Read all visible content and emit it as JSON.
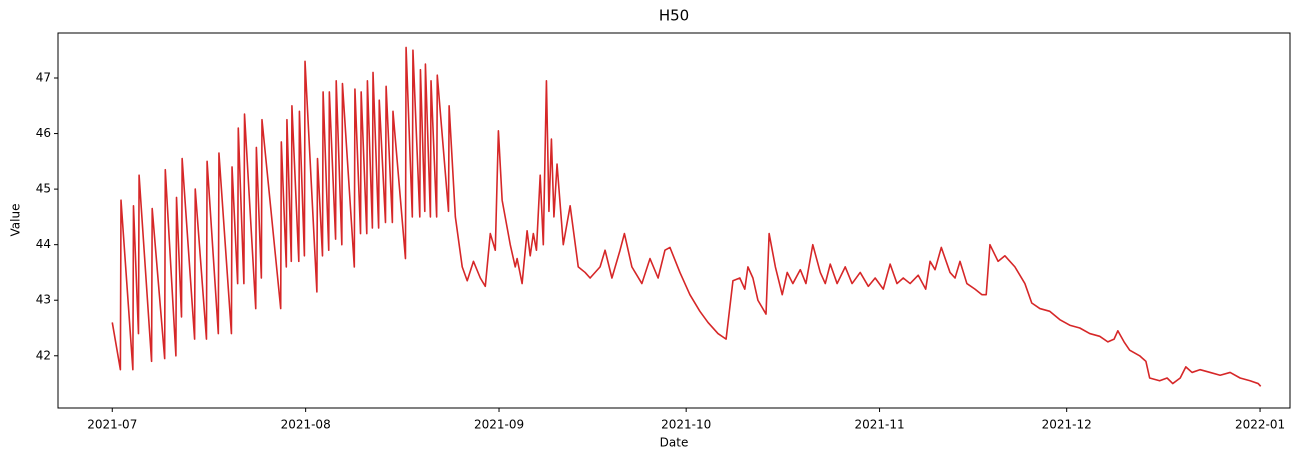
{
  "chart_data": {
    "type": "line",
    "title": "H50",
    "xlabel": "Date",
    "ylabel": "Value",
    "color": "#d62728",
    "xlim": [
      -8.7,
      188.8
    ],
    "ylim": [
      41.06,
      47.81
    ],
    "xticks": [
      {
        "value": 0,
        "label": "2021-07"
      },
      {
        "value": 31,
        "label": "2021-08"
      },
      {
        "value": 62,
        "label": "2021-09"
      },
      {
        "value": 92,
        "label": "2021-10"
      },
      {
        "value": 123,
        "label": "2021-11"
      },
      {
        "value": 153,
        "label": "2021-12"
      },
      {
        "value": 184,
        "label": "2022-01"
      }
    ],
    "yticks": [
      42,
      43,
      44,
      45,
      46,
      47
    ],
    "grid": false,
    "x": [
      0,
      1.3,
      1.4,
      3.3,
      3.4,
      4.2,
      4.3,
      6.3,
      6.4,
      8.4,
      8.5,
      10.2,
      10.3,
      11.1,
      11.2,
      13.2,
      13.3,
      15.1,
      15.2,
      17.0,
      17.1,
      19.1,
      19.2,
      20.1,
      20.2,
      21.1,
      21.2,
      23.0,
      23.1,
      23.9,
      24.0,
      27.0,
      27.1,
      27.9,
      28.0,
      28.7,
      28.8,
      29.9,
      30.0,
      30.8,
      30.9,
      32.8,
      32.9,
      33.7,
      33.8,
      34.7,
      34.8,
      35.8,
      35.9,
      36.8,
      36.9,
      38.8,
      38.9,
      39.8,
      39.9,
      40.8,
      40.9,
      41.7,
      41.8,
      42.7,
      42.8,
      43.8,
      43.9,
      44.9,
      45.0,
      47.0,
      47.1,
      48.1,
      48.2,
      49.3,
      49.4,
      50.1,
      50.2,
      51.0,
      51.1,
      52.0,
      52.1,
      53.9,
      54.0,
      55.0,
      56.1,
      56.9,
      57.9,
      59.0,
      59.8,
      60.6,
      61.4,
      61.9,
      62.5,
      63.8,
      64.6,
      64.9,
      65.7,
      66.5,
      67.0,
      67.5,
      68.0,
      68.6,
      69.1,
      69.6,
      70.0,
      70.4,
      70.8,
      71.3,
      72.3,
      73.4,
      74.7,
      75.8,
      76.6,
      78.2,
      79.0,
      80.1,
      81.4,
      82.1,
      83.3,
      84.9,
      86.2,
      87.5,
      88.6,
      89.4,
      91.0,
      92.6,
      94.2,
      95.5,
      97.1,
      98.4,
      99.5,
      100.6,
      101.4,
      101.9,
      102.7,
      103.5,
      104.8,
      105.3,
      106.3,
      107.4,
      108.2,
      109.1,
      110.3,
      111.2,
      112.3,
      113.5,
      114.3,
      115.1,
      116.2,
      117.5,
      118.6,
      119.9,
      121.2,
      122.3,
      123.6,
      124.7,
      125.8,
      126.8,
      127.9,
      129.2,
      130.4,
      131.1,
      131.9,
      132.9,
      134.3,
      135.1,
      135.9,
      137.0,
      138.3,
      139.4,
      140.1,
      140.7,
      142.0,
      143.1,
      144.7,
      146.3,
      147.4,
      148.7,
      150.3,
      151.9,
      153.5,
      155.1,
      156.7,
      158.3,
      159.6,
      160.6,
      161.2,
      162.2,
      163.1,
      164.7,
      165.7,
      166.3,
      167.9,
      169.1,
      170.0,
      171.2,
      172.1,
      173.1,
      174.4,
      176.0,
      177.6,
      179.2,
      180.8,
      182.4,
      183.7,
      184.1
    ],
    "values": [
      42.6,
      41.75,
      44.8,
      41.75,
      44.7,
      42.4,
      45.25,
      41.9,
      44.65,
      41.95,
      45.35,
      42.0,
      44.85,
      42.7,
      45.55,
      42.3,
      45.0,
      42.3,
      45.5,
      42.4,
      45.65,
      42.4,
      45.4,
      43.3,
      46.1,
      43.3,
      46.35,
      42.85,
      45.75,
      43.4,
      46.25,
      42.85,
      45.85,
      43.6,
      46.25,
      43.7,
      46.5,
      43.7,
      46.4,
      43.8,
      47.3,
      43.15,
      45.55,
      43.8,
      46.75,
      43.9,
      46.75,
      44.1,
      46.95,
      44.0,
      46.9,
      43.6,
      46.8,
      44.2,
      46.75,
      44.2,
      46.95,
      44.3,
      47.1,
      44.3,
      46.6,
      44.4,
      46.85,
      44.4,
      46.4,
      43.75,
      47.55,
      44.5,
      47.5,
      44.5,
      47.15,
      44.6,
      47.25,
      44.5,
      46.95,
      44.5,
      47.05,
      44.6,
      46.5,
      44.5,
      43.6,
      43.35,
      43.7,
      43.4,
      43.25,
      44.2,
      43.9,
      46.05,
      44.8,
      44.0,
      43.6,
      43.75,
      43.3,
      44.25,
      43.8,
      44.2,
      43.9,
      45.25,
      44.0,
      46.95,
      44.6,
      45.9,
      44.5,
      45.45,
      44.0,
      44.7,
      43.6,
      43.5,
      43.4,
      43.6,
      43.9,
      43.4,
      43.9,
      44.2,
      43.6,
      43.3,
      43.75,
      43.4,
      43.9,
      43.95,
      43.5,
      43.1,
      42.8,
      42.6,
      42.4,
      42.3,
      43.35,
      43.4,
      43.2,
      43.6,
      43.4,
      43.0,
      42.75,
      44.2,
      43.6,
      43.1,
      43.5,
      43.3,
      43.55,
      43.3,
      44.0,
      43.5,
      43.3,
      43.65,
      43.3,
      43.6,
      43.3,
      43.5,
      43.25,
      43.4,
      43.2,
      43.65,
      43.3,
      43.4,
      43.3,
      43.45,
      43.2,
      43.7,
      43.55,
      43.95,
      43.5,
      43.4,
      43.7,
      43.3,
      43.2,
      43.1,
      43.1,
      44.0,
      43.7,
      43.8,
      43.6,
      43.3,
      42.95,
      42.85,
      42.8,
      42.65,
      42.55,
      42.5,
      42.4,
      42.35,
      42.25,
      42.3,
      42.45,
      42.25,
      42.1,
      42.0,
      41.9,
      41.6,
      41.55,
      41.6,
      41.5,
      41.6,
      41.8,
      41.7,
      41.75,
      41.7,
      41.65,
      41.7,
      41.6,
      41.55,
      41.5,
      41.45
    ]
  }
}
